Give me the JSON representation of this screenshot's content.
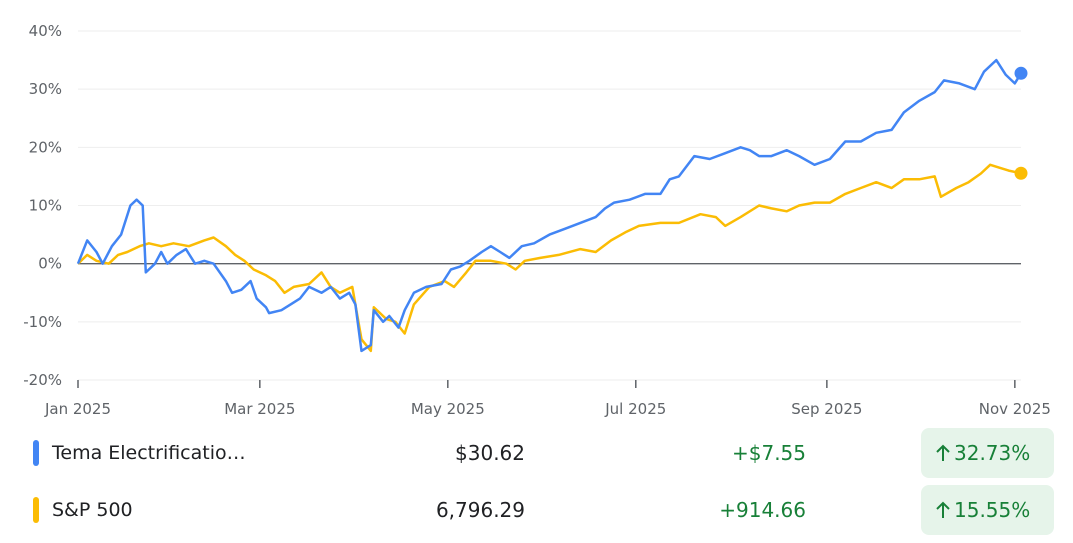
{
  "chart_data": {
    "type": "line",
    "ylim": [
      -20,
      40
    ],
    "yticks": [
      {
        "value": -20,
        "label": "-20%"
      },
      {
        "value": -10,
        "label": "-10%"
      },
      {
        "value": 0,
        "label": "0%"
      },
      {
        "value": 10,
        "label": "10%"
      },
      {
        "value": 20,
        "label": "20%"
      },
      {
        "value": 30,
        "label": "30%"
      },
      {
        "value": 40,
        "label": "40%"
      }
    ],
    "xlim": [
      0,
      306
    ],
    "xticks": [
      {
        "value": 0,
        "label": "Jan 2025"
      },
      {
        "value": 59,
        "label": "Mar 2025"
      },
      {
        "value": 120,
        "label": "May 2025"
      },
      {
        "value": 181,
        "label": "Jul 2025"
      },
      {
        "value": 243,
        "label": "Sep 2025"
      },
      {
        "value": 304,
        "label": "Nov 2025"
      }
    ],
    "grid": true,
    "series": [
      {
        "name": "Tema Electrificatio…",
        "color": "#4285f4",
        "price": "$30.62",
        "change": "+$7.55",
        "change_percent": "32.73%",
        "x": [
          0,
          3,
          6,
          8,
          11,
          14,
          17,
          19,
          21,
          22,
          25,
          27,
          29,
          32,
          35,
          38,
          41,
          44,
          48,
          50,
          53,
          56,
          58,
          61,
          62,
          66,
          69,
          72,
          75,
          79,
          82,
          85,
          88,
          90,
          92,
          95,
          96,
          99,
          101,
          104,
          106,
          109,
          113,
          118,
          121,
          124,
          127,
          131,
          134,
          137,
          140,
          144,
          148,
          153,
          158,
          163,
          168,
          171,
          174,
          179,
          184,
          189,
          192,
          195,
          200,
          205,
          210,
          215,
          218,
          221,
          225,
          230,
          234,
          239,
          244,
          249,
          254,
          259,
          264,
          268,
          273,
          278,
          281,
          286,
          291,
          294,
          298,
          301,
          304,
          306
        ],
        "values": [
          0,
          4,
          2,
          0,
          3,
          5,
          10,
          11,
          10,
          -1.5,
          0,
          2,
          0,
          1.5,
          2.5,
          0,
          0.5,
          0,
          -3,
          -5,
          -4.5,
          -3,
          -6,
          -7.5,
          -8.5,
          -8,
          -7,
          -6,
          -4,
          -5,
          -4,
          -6,
          -5,
          -7,
          -15,
          -14,
          -8,
          -10,
          -9,
          -11,
          -8,
          -5,
          -4,
          -3.5,
          -1,
          -0.5,
          0.5,
          2,
          3,
          2,
          1,
          3,
          3.5,
          5,
          6,
          7,
          8,
          9.5,
          10.5,
          11,
          12,
          12,
          14.5,
          15,
          18.5,
          18,
          19,
          20,
          19.5,
          18.5,
          18.5,
          19.5,
          18.5,
          17,
          18,
          21,
          21,
          22.5,
          23,
          26,
          28,
          29.5,
          31.5,
          31,
          30,
          33,
          35,
          32.5,
          31,
          32.73
        ]
      },
      {
        "name": "S&P 500",
        "color": "#fbbc04",
        "price": "6,796.29",
        "change": "+914.66",
        "change_percent": "15.55%",
        "x": [
          0,
          3,
          6,
          10,
          13,
          16,
          20,
          23,
          27,
          31,
          36,
          41,
          44,
          48,
          51,
          54,
          57,
          61,
          64,
          67,
          70,
          75,
          79,
          82,
          85,
          89,
          92,
          95,
          96,
          100,
          103,
          106,
          109,
          114,
          119,
          122,
          126,
          129,
          134,
          139,
          142,
          145,
          150,
          156,
          163,
          168,
          173,
          178,
          182,
          189,
          195,
          202,
          207,
          210,
          215,
          221,
          225,
          230,
          234,
          239,
          244,
          249,
          254,
          259,
          264,
          268,
          273,
          278,
          280,
          285,
          289,
          293,
          296,
          299,
          302,
          306
        ],
        "values": [
          0,
          1.5,
          0.5,
          0,
          1.5,
          2,
          3,
          3.5,
          3,
          3.5,
          3,
          4,
          4.5,
          3,
          1.5,
          0.5,
          -1,
          -2,
          -3,
          -5,
          -4,
          -3.5,
          -1.5,
          -4,
          -5,
          -4,
          -13,
          -15,
          -7.5,
          -9.5,
          -10,
          -12,
          -7,
          -4,
          -3,
          -4,
          -1.5,
          0.5,
          0.5,
          0,
          -1,
          0.5,
          1,
          1.5,
          2.5,
          2,
          4,
          5.5,
          6.5,
          7,
          7,
          8.5,
          8,
          6.5,
          8,
          10,
          9.5,
          9,
          10,
          10.5,
          10.5,
          12,
          13,
          14,
          13,
          14.5,
          14.5,
          15,
          11.5,
          13,
          14,
          15.5,
          17,
          16.5,
          16,
          15.55
        ]
      }
    ]
  }
}
